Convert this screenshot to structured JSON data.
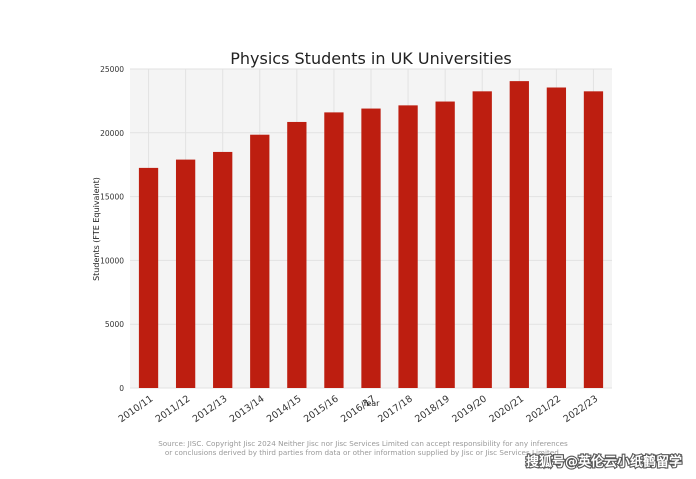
{
  "chart_data": {
    "type": "bar",
    "title": "Physics Students in UK Universities",
    "xlabel": "Year",
    "ylabel": "Students (FTE Equivalent)",
    "categories": [
      "2010/11",
      "2011/12",
      "2012/13",
      "2013/14",
      "2014/15",
      "2015/16",
      "2016/17",
      "2017/18",
      "2018/19",
      "2019/20",
      "2020/21",
      "2021/22",
      "2022/23"
    ],
    "values": [
      17250,
      17900,
      18500,
      19850,
      20850,
      21600,
      21900,
      22150,
      22450,
      23250,
      24050,
      23550,
      23250
    ],
    "ylim": [
      0,
      25000
    ],
    "yticks": [
      0,
      5000,
      10000,
      15000,
      20000,
      25000
    ],
    "grid": true,
    "bar_color": "#bd1e10",
    "plot_background": "#f4f4f4",
    "source_lines": [
      "Source: JISC. Copyright Jisc 2024 Neither Jisc nor Jisc Services Limited can accept responsibility for any inferences",
      "or conclusions derived by third parties from data or other information supplied by Jisc or Jisc Services Limited."
    ]
  },
  "watermark": "搜狐号@英伦云小纸鹤留学"
}
